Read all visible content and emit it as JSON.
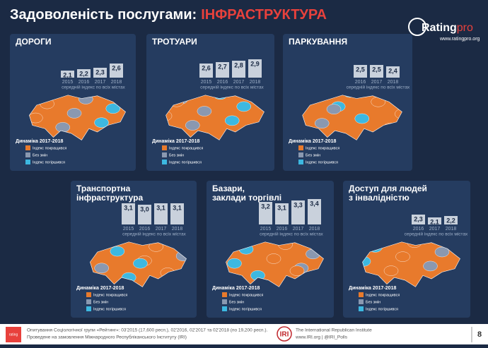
{
  "header": {
    "title": "Задоволеність послугами:",
    "title_accent": "ІНФРАСТРУКТУРА",
    "logo": "Rating",
    "logo_suffix": "pro",
    "site": "www.ratingpro.org"
  },
  "chart_data": [
    {
      "type": "bar",
      "title": [
        "ДОРОГИ"
      ],
      "categories": [
        "2015",
        "2016",
        "2017",
        "2018"
      ],
      "values": [
        2.1,
        2.2,
        2.3,
        2.6
      ],
      "value_labels": [
        "2,1",
        "2,2",
        "2,3",
        "2,6"
      ],
      "subtitle": "середній індекс по всіх містах",
      "ylim": [
        1.6,
        3.6
      ],
      "color": "#c9d1dc",
      "map_legend": {
        "title": "Динаміка 2017-2018",
        "items": [
          {
            "label": "Індекс покращився",
            "color": "#e87a2c"
          },
          {
            "label": "Без змін",
            "color": "#8a98b0"
          },
          {
            "label": "Індекс погіршився",
            "color": "#3db8e0"
          }
        ]
      }
    },
    {
      "type": "bar",
      "title": [
        "ТРОТУАРИ"
      ],
      "categories": [
        "2015",
        "2016",
        "2017",
        "2018"
      ],
      "values": [
        2.6,
        2.7,
        2.8,
        2.9
      ],
      "value_labels": [
        "2,6",
        "2,7",
        "2,8",
        "2,9"
      ],
      "subtitle": "середній індекс по всіх містах",
      "ylim": [
        1.6,
        3.6
      ],
      "color": "#c9d1dc",
      "map_legend": {
        "title": "Динаміка 2017-2018",
        "items": [
          {
            "label": "Індекс покращився",
            "color": "#e87a2c"
          },
          {
            "label": "Без змін",
            "color": "#8a98b0"
          },
          {
            "label": "Індекс погіршився",
            "color": "#3db8e0"
          }
        ]
      }
    },
    {
      "type": "bar",
      "title": [
        "ПАРКУВАННЯ"
      ],
      "categories": [
        "2016",
        "2017",
        "2018"
      ],
      "values": [
        2.5,
        2.5,
        2.4
      ],
      "value_labels": [
        "2,5",
        "2,5",
        "2,4"
      ],
      "subtitle": "середній індекс по всіх містах",
      "ylim": [
        1.6,
        3.6
      ],
      "color": "#c9d1dc",
      "map_legend": {
        "title": "Динаміка 2017-2018",
        "items": [
          {
            "label": "Індекс покращився",
            "color": "#e87a2c"
          },
          {
            "label": "Без змін",
            "color": "#8a98b0"
          },
          {
            "label": "Індекс погіршився",
            "color": "#3db8e0"
          }
        ]
      }
    },
    {
      "type": "bar",
      "title": [
        "Транспортна",
        "інфраструктура"
      ],
      "categories": [
        "2015",
        "2016",
        "2017",
        "2018"
      ],
      "values": [
        3.1,
        3.0,
        3.1,
        3.1
      ],
      "value_labels": [
        "3,1",
        "3,0",
        "3,1",
        "3,1"
      ],
      "subtitle": "середній індекс по всіх містах",
      "ylim": [
        1.6,
        3.6
      ],
      "color": "#c9d1dc",
      "map_legend": {
        "title": "Динаміка 2017-2018",
        "items": [
          {
            "label": "Індекс покращився",
            "color": "#e87a2c"
          },
          {
            "label": "Без змін",
            "color": "#8a98b0"
          },
          {
            "label": "Індекс погіршився",
            "color": "#3db8e0"
          }
        ]
      }
    },
    {
      "type": "bar",
      "title": [
        "Базари,",
        "заклади торгівлі"
      ],
      "categories": [
        "2015",
        "2016",
        "2017",
        "2018"
      ],
      "values": [
        3.2,
        3.1,
        3.3,
        3.4
      ],
      "value_labels": [
        "3,2",
        "3,1",
        "3,3",
        "3,4"
      ],
      "subtitle": "середній індекс по всіх містах",
      "ylim": [
        1.6,
        3.6
      ],
      "color": "#c9d1dc",
      "map_legend": {
        "title": "Динаміка 2017-2018",
        "items": [
          {
            "label": "Індекс покращився",
            "color": "#e87a2c"
          },
          {
            "label": "Без змін",
            "color": "#8a98b0"
          },
          {
            "label": "Індекс погіршився",
            "color": "#3db8e0"
          }
        ]
      }
    },
    {
      "type": "bar",
      "title": [
        "Доступ для людей",
        "з інвалідністю"
      ],
      "categories": [
        "2016",
        "2017",
        "2018"
      ],
      "values": [
        2.3,
        2.1,
        2.2
      ],
      "value_labels": [
        "2,3",
        "2,1",
        "2,2"
      ],
      "subtitle": "середній індекс по всіх містах",
      "ylim": [
        1.6,
        3.6
      ],
      "color": "#c9d1dc",
      "map_legend": {
        "title": "Динаміка 2017-2018",
        "items": [
          {
            "label": "Індекс покращився",
            "color": "#e87a2c"
          },
          {
            "label": "Без змін",
            "color": "#8a98b0"
          },
          {
            "label": "Індекс погіршився",
            "color": "#3db8e0"
          }
        ]
      }
    }
  ],
  "footer": {
    "badge": "rating",
    "lines": [
      "Опитування Соціологічної групи «Рейтинг»: 03'2015 (17,600 респ.), 02'2016, 02'2017 та 02'2018 (по 19,200 респ.).",
      "Проведене на замовлення Міжнародного Республіканського Інституту (IRI)"
    ],
    "iri": "IRI",
    "iri_lines": [
      "The International Republican Institute",
      "www.IRI.org | @IRI_Polls"
    ],
    "page": "8"
  }
}
